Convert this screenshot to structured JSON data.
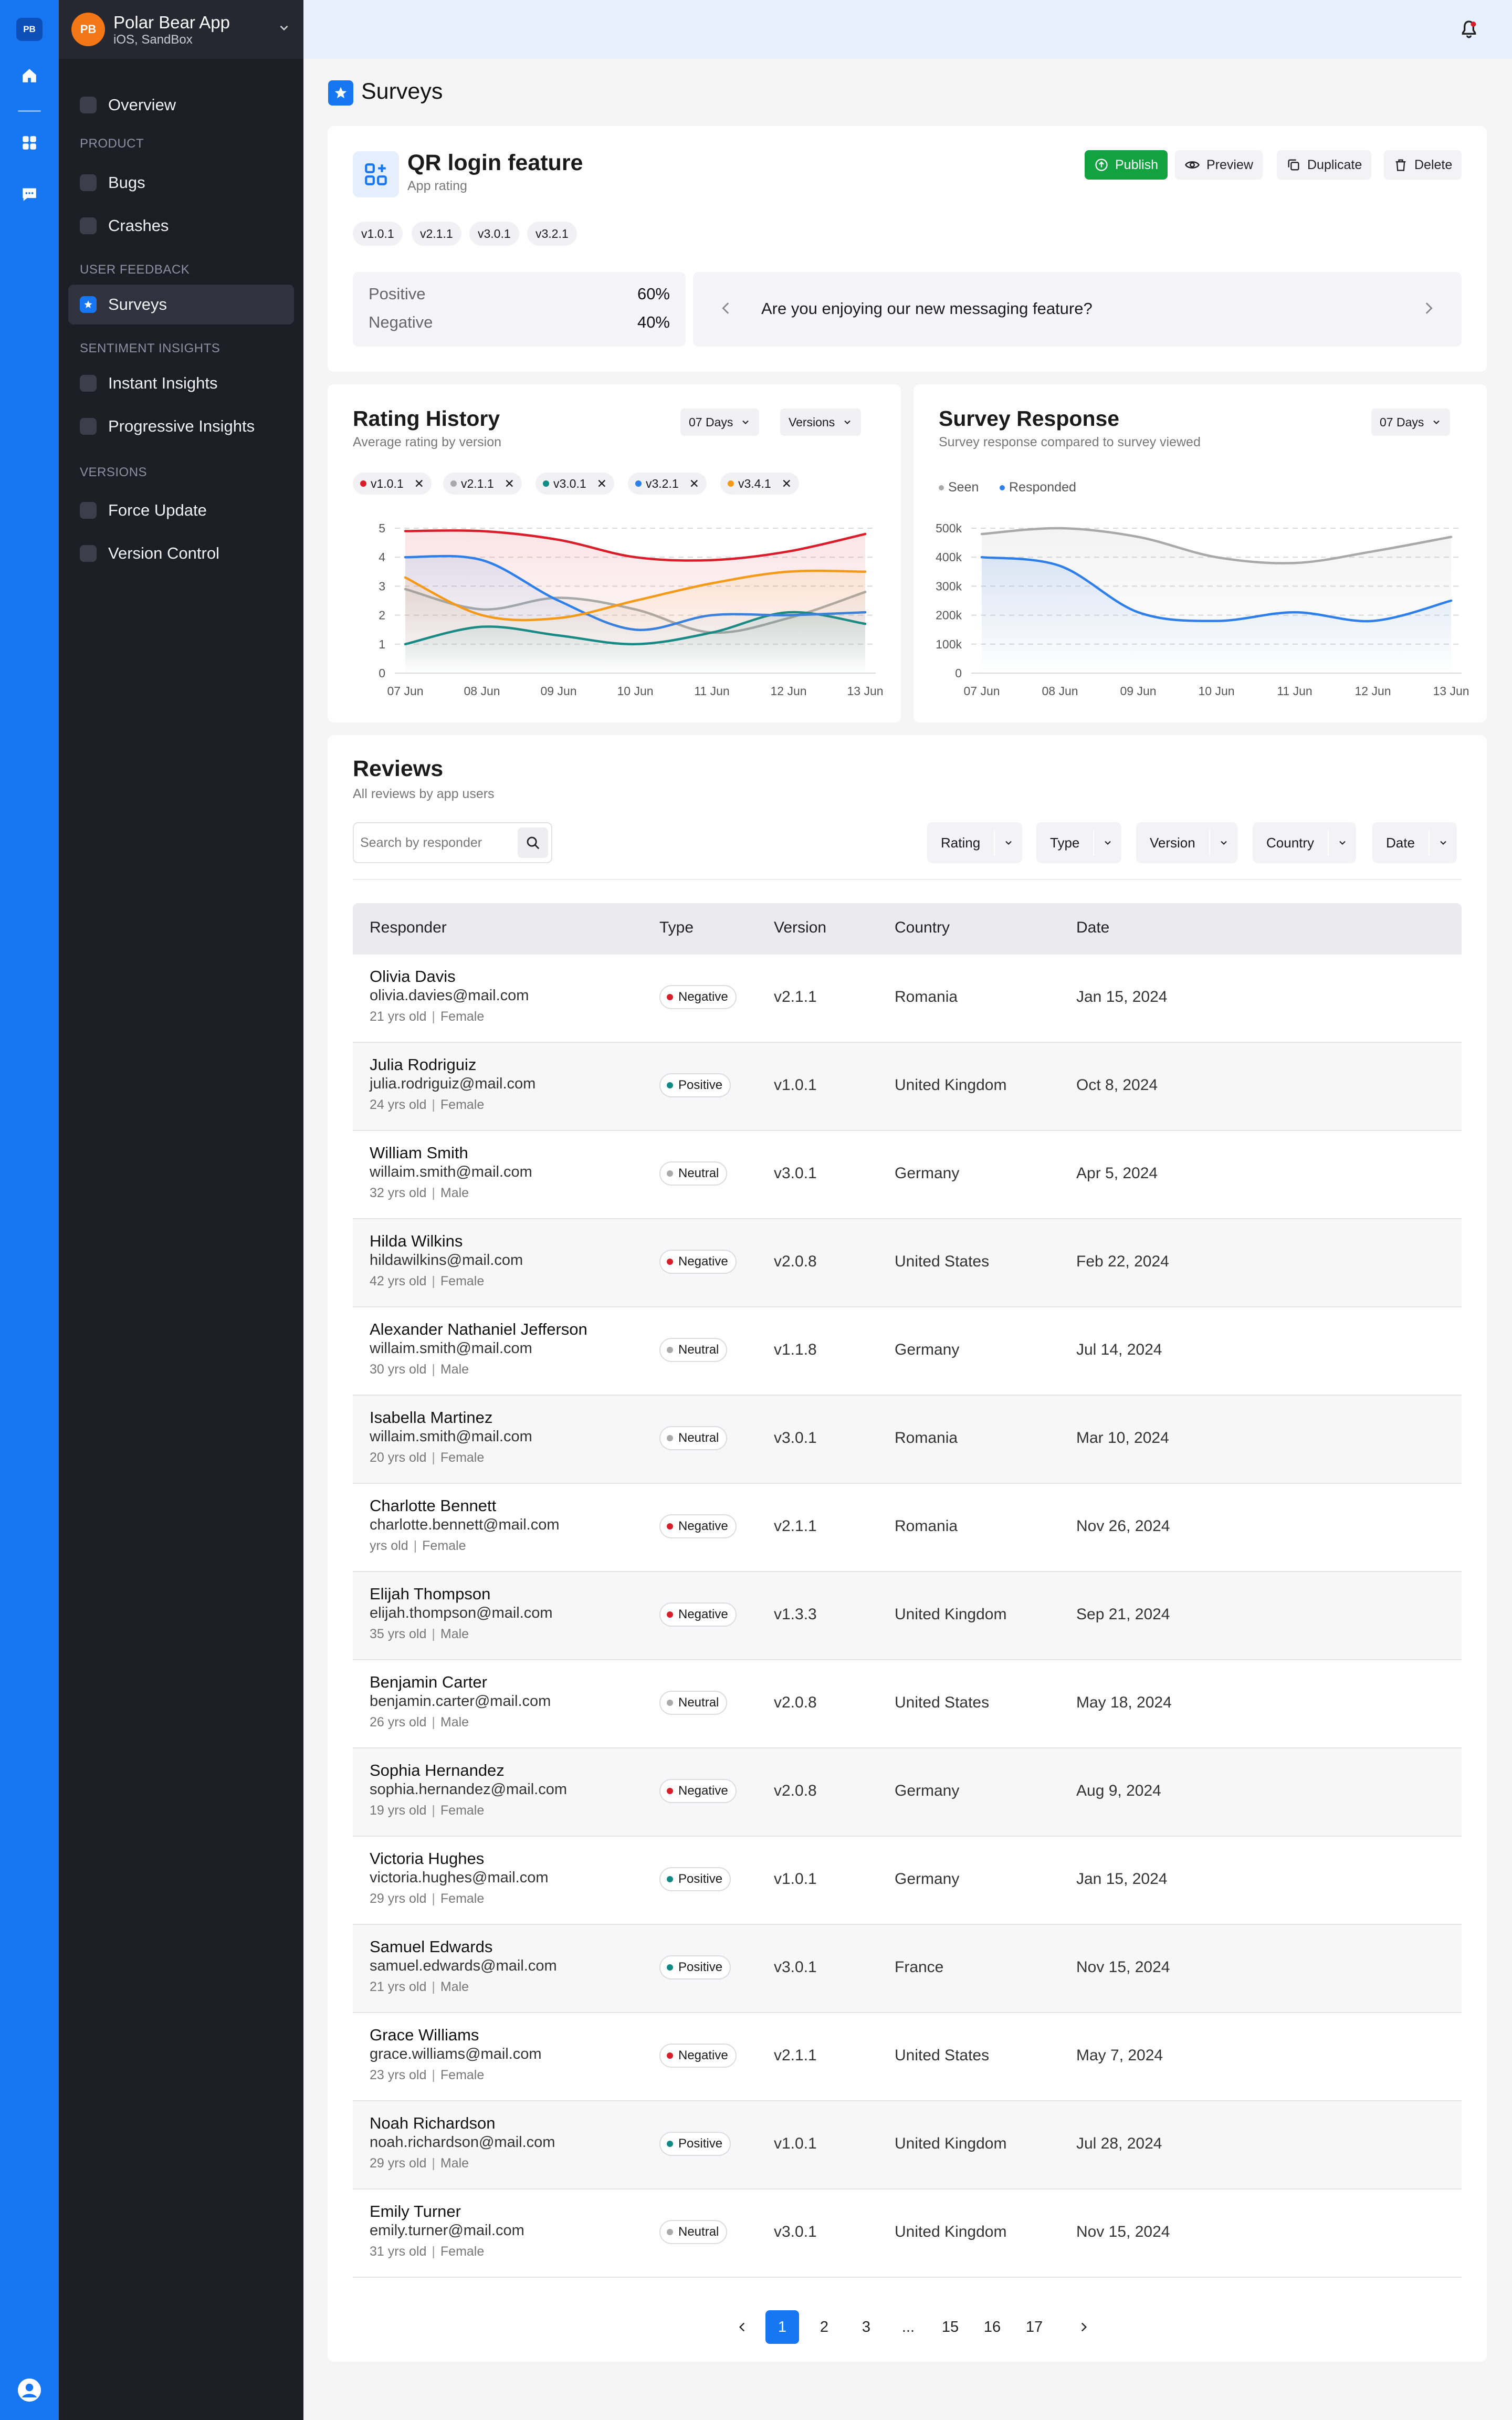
{
  "rail": {
    "logo": "PB"
  },
  "app": {
    "avatar": "PB",
    "name": "Polar Bear App",
    "sub": "iOS, SandBox"
  },
  "nav": {
    "overview": "Overview",
    "sections": {
      "product": "PRODUCT",
      "feedback": "USER FEEDBACK",
      "sentiment": "SENTIMENT INSIGHTS",
      "versions": "VERSIONS"
    },
    "bugs": "Bugs",
    "crashes": "Crashes",
    "surveys": "Surveys",
    "instant": "Instant Insights",
    "progressive": "Progressive Insights",
    "force": "Force Update",
    "control": "Version Control"
  },
  "page": {
    "title": "Surveys"
  },
  "survey": {
    "title": "QR login feature",
    "subtitle": "App rating",
    "actions": {
      "publish": "Publish",
      "preview": "Preview",
      "duplicate": "Duplicate",
      "delete": "Delete"
    },
    "versions": [
      "v1.0.1",
      "v2.1.1",
      "v3.0.1",
      "v3.2.1"
    ],
    "positive_label": "Positive",
    "positive_value": "60%",
    "negative_label": "Negative",
    "negative_value": "40%",
    "question": "Are you enjoying our new messaging feature?"
  },
  "rating_history": {
    "title": "Rating History",
    "subtitle": "Average rating by version",
    "range": "07 Days",
    "versions_dd": "Versions"
  },
  "survey_response": {
    "title": "Survey Response",
    "subtitle": "Survey response compared to survey viewed",
    "range": "07 Days"
  },
  "colors": {
    "v1.0.1": "#d81e2a",
    "v2.1.1": "#a9a9a9",
    "v3.0.1": "#0f8a86",
    "v3.2.1": "#2e7fe8",
    "v3.4.1": "#f39a1b",
    "seen": "#a9a9a9",
    "responded": "#2e7fe8",
    "accent": "#1777f2",
    "positive": "#0f8a86",
    "negative": "#d81e2a",
    "neutral": "#a9a9a9"
  },
  "chart_data": [
    {
      "type": "line",
      "title": "Rating History",
      "subtitle": "Average rating by version",
      "x": [
        "07 Jun",
        "08 Jun",
        "09 Jun",
        "10 Jun",
        "11 Jun",
        "12 Jun",
        "13 Jun"
      ],
      "ylim": [
        0,
        5
      ],
      "yticks": [
        "0",
        "1",
        "2",
        "3",
        "4",
        "5"
      ],
      "grid": true,
      "series": [
        {
          "name": "v1.0.1",
          "values": [
            4.9,
            4.9,
            4.6,
            4.0,
            3.9,
            4.2,
            4.8
          ]
        },
        {
          "name": "v2.1.1",
          "values": [
            2.9,
            2.2,
            2.6,
            2.2,
            1.4,
            1.9,
            2.8
          ]
        },
        {
          "name": "v3.0.1",
          "values": [
            1.0,
            1.6,
            1.3,
            1.0,
            1.4,
            2.1,
            1.7
          ]
        },
        {
          "name": "v3.2.1",
          "values": [
            4.0,
            3.9,
            2.5,
            1.5,
            2.0,
            2.0,
            2.1
          ]
        },
        {
          "name": "v3.4.1",
          "values": [
            3.3,
            2.0,
            1.9,
            2.5,
            3.1,
            3.5,
            3.5
          ]
        }
      ]
    },
    {
      "type": "area",
      "title": "Survey Response",
      "subtitle": "Survey response compared to survey viewed",
      "x": [
        "07 Jun",
        "08 Jun",
        "09 Jun",
        "10 Jun",
        "11 Jun",
        "12 Jun",
        "13 Jun"
      ],
      "ylim": [
        0,
        500000
      ],
      "yticks": [
        "0",
        "100k",
        "200k",
        "300k",
        "400k",
        "500k"
      ],
      "grid": true,
      "legend": "top-left",
      "series": [
        {
          "name": "Seen",
          "values": [
            480000,
            500000,
            470000,
            400000,
            380000,
            420000,
            470000
          ]
        },
        {
          "name": "Responded",
          "values": [
            400000,
            370000,
            210000,
            180000,
            210000,
            180000,
            250000
          ]
        }
      ]
    }
  ],
  "reviews": {
    "title": "Reviews",
    "subtitle": "All reviews by app users",
    "search_placeholder": "Search by responder",
    "filters": {
      "rating": "Rating",
      "type": "Type",
      "version": "Version",
      "country": "Country",
      "date": "Date"
    },
    "columns": {
      "responder": "Responder",
      "type": "Type",
      "version": "Version",
      "country": "Country",
      "date": "Date"
    },
    "rows": [
      {
        "name": "Olivia Davis",
        "email": "olivia.davies@mail.com",
        "age": "21 yrs old",
        "gender": "Female",
        "type": "Negative",
        "version": "v2.1.1",
        "country": "Romania",
        "date": "Jan 15, 2024"
      },
      {
        "name": "Julia Rodriguiz",
        "email": "julia.rodriguiz@mail.com",
        "age": "24 yrs old",
        "gender": "Female",
        "type": "Positive",
        "version": "v1.0.1",
        "country": "United Kingdom",
        "date": "Oct 8, 2024"
      },
      {
        "name": "William Smith",
        "email": "willaim.smith@mail.com",
        "age": "32 yrs old",
        "gender": "Male",
        "type": "Neutral",
        "version": "v3.0.1",
        "country": "Germany",
        "date": "Apr 5, 2024"
      },
      {
        "name": "Hilda Wilkins",
        "email": "hildawilkins@mail.com",
        "age": "42 yrs old",
        "gender": "Female",
        "type": "Negative",
        "version": "v2.0.8",
        "country": "United States",
        "date": "Feb 22, 2024"
      },
      {
        "name": "Alexander Nathaniel Jefferson",
        "email": "willaim.smith@mail.com",
        "age": "30 yrs old",
        "gender": "Male",
        "type": "Neutral",
        "version": "v1.1.8",
        "country": "Germany",
        "date": "Jul 14, 2024"
      },
      {
        "name": "Isabella Martinez",
        "email": "willaim.smith@mail.com",
        "age": "20 yrs old",
        "gender": "Female",
        "type": "Neutral",
        "version": "v3.0.1",
        "country": "Romania",
        "date": "Mar 10, 2024"
      },
      {
        "name": "Charlotte Bennett",
        "email": "charlotte.bennett@mail.com",
        "age": " yrs old",
        "gender": "Female",
        "type": "Negative",
        "version": "v2.1.1",
        "country": "Romania",
        "date": "Nov 26, 2024"
      },
      {
        "name": "Elijah Thompson",
        "email": "elijah.thompson@mail.com",
        "age": "35 yrs old",
        "gender": "Male",
        "type": "Negative",
        "version": "v1.3.3",
        "country": "United Kingdom",
        "date": "Sep 21, 2024"
      },
      {
        "name": "Benjamin Carter",
        "email": "benjamin.carter@mail.com",
        "age": "26 yrs old",
        "gender": "Male",
        "type": "Neutral",
        "version": "v2.0.8",
        "country": "United States",
        "date": "May 18, 2024"
      },
      {
        "name": "Sophia Hernandez",
        "email": "sophia.hernandez@mail.com",
        "age": "19 yrs old",
        "gender": "Female",
        "type": "Negative",
        "version": "v2.0.8",
        "country": "Germany",
        "date": "Aug 9, 2024"
      },
      {
        "name": "Victoria Hughes",
        "email": "victoria.hughes@mail.com",
        "age": "29 yrs old",
        "gender": "Female",
        "type": "Positive",
        "version": "v1.0.1",
        "country": "Germany",
        "date": "Jan 15, 2024"
      },
      {
        "name": "Samuel Edwards",
        "email": "samuel.edwards@mail.com",
        "age": "21 yrs old",
        "gender": "Male",
        "type": "Positive",
        "version": "v3.0.1",
        "country": "France",
        "date": "Nov 15, 2024"
      },
      {
        "name": "Grace Williams",
        "email": "grace.williams@mail.com",
        "age": "23 yrs old",
        "gender": "Female",
        "type": "Negative",
        "version": "v2.1.1",
        "country": "United States",
        "date": "May 7, 2024"
      },
      {
        "name": "Noah Richardson",
        "email": "noah.richardson@mail.com",
        "age": "29 yrs old",
        "gender": "Male",
        "type": "Positive",
        "version": "v1.0.1",
        "country": "United Kingdom",
        "date": "Jul 28, 2024"
      },
      {
        "name": "Emily Turner",
        "email": "emily.turner@mail.com",
        "age": "31 yrs old",
        "gender": "Female",
        "type": "Neutral",
        "version": "v3.0.1",
        "country": "United Kingdom",
        "date": "Nov 15, 2024"
      }
    ]
  },
  "pagination": {
    "pages": [
      "1",
      "2",
      "3",
      "...",
      "15",
      "16",
      "17"
    ],
    "current": "1"
  }
}
